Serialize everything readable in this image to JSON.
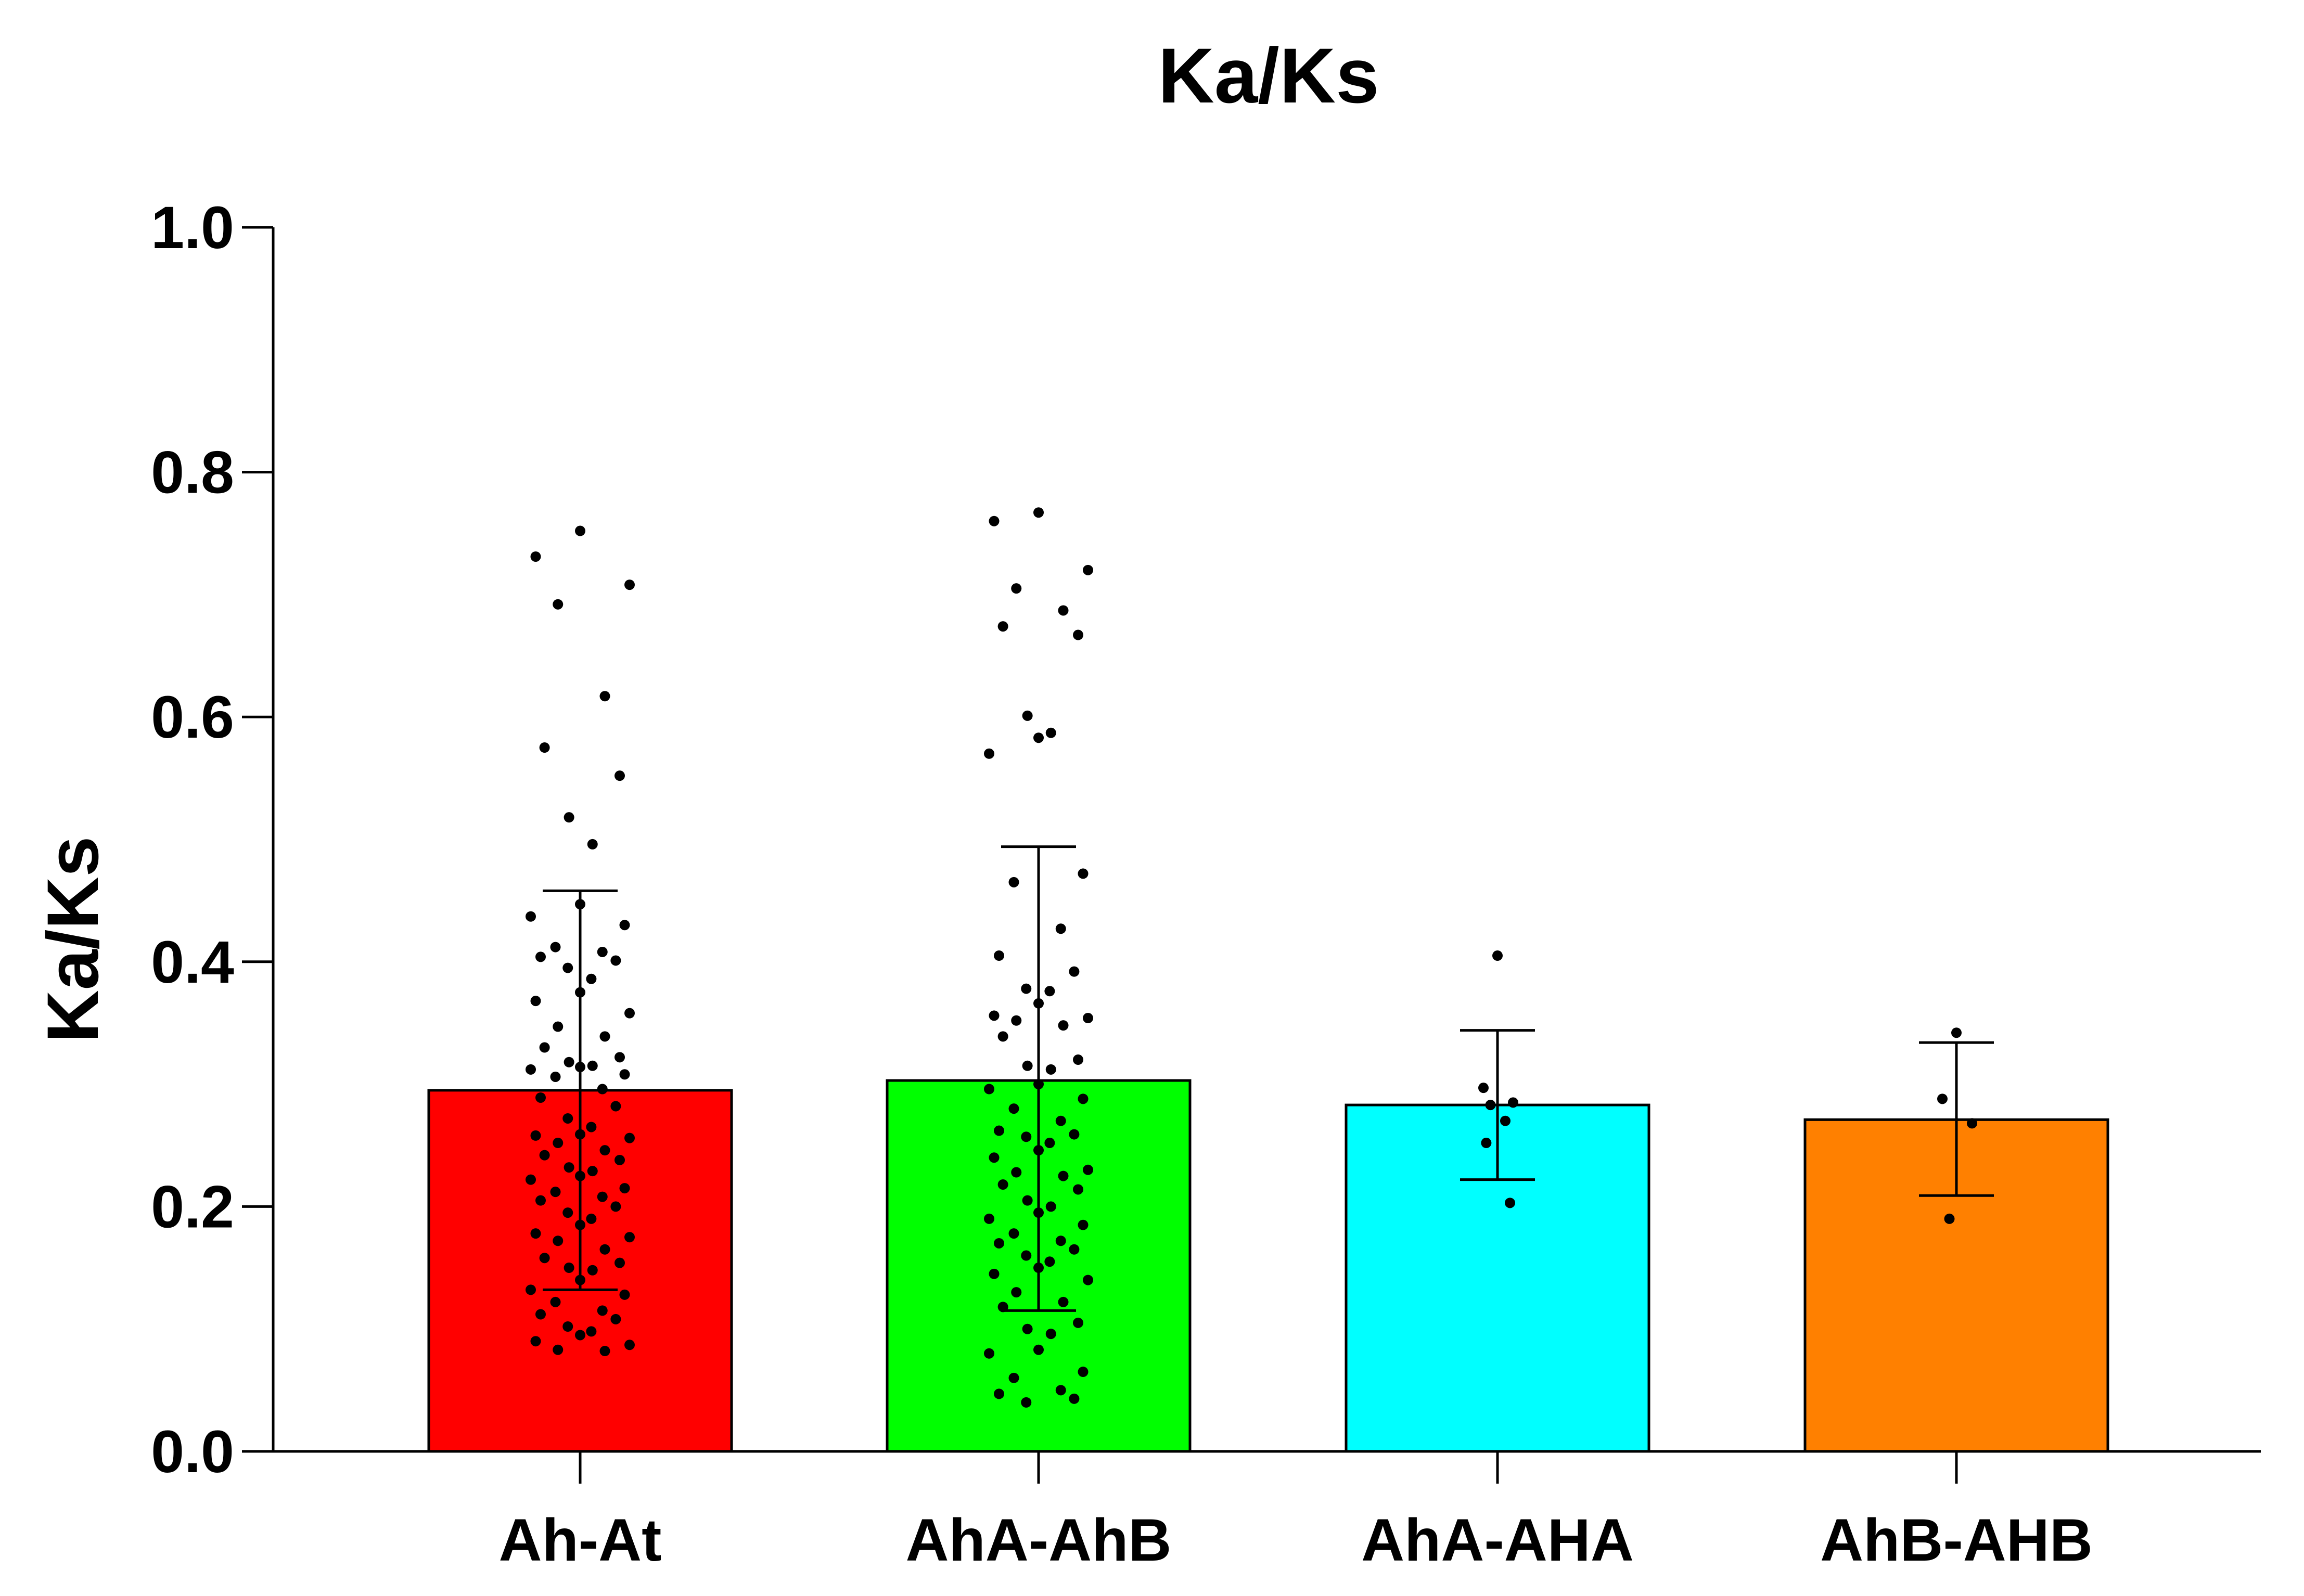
{
  "chart_data": {
    "type": "bar",
    "title": "Ka/Ks",
    "xlabel": "",
    "ylabel": "Ka/Ks",
    "ylim": [
      0,
      1.0
    ],
    "yticks": [
      "0.0",
      "0.2",
      "0.4",
      "0.6",
      "0.8",
      "1.0"
    ],
    "categories": [
      "Ah-At",
      "AhA-AhB",
      "AhA-AHA",
      "AhB-AHB"
    ],
    "values": [
      0.295,
      0.303,
      0.283,
      0.271
    ],
    "error_bars": [
      {
        "low": 0.132,
        "high": 0.458
      },
      {
        "low": 0.115,
        "high": 0.494
      },
      {
        "low": 0.222,
        "high": 0.344
      },
      {
        "low": 0.209,
        "high": 0.334
      }
    ],
    "colors": [
      "#ff0000",
      "#00ff00",
      "#00ffff",
      "#ff8000"
    ],
    "points": [
      [
        0.752,
        0.731,
        0.708,
        0.692,
        0.617,
        0.575,
        0.552,
        0.518,
        0.496,
        0.447,
        0.437,
        0.43,
        0.412,
        0.408,
        0.404,
        0.401,
        0.395,
        0.386,
        0.375,
        0.368,
        0.358,
        0.347,
        0.339,
        0.33,
        0.322,
        0.318,
        0.315,
        0.314,
        0.312,
        0.308,
        0.306,
        0.296,
        0.289,
        0.282,
        0.272,
        0.265,
        0.259,
        0.258,
        0.256,
        0.252,
        0.246,
        0.242,
        0.238,
        0.232,
        0.229,
        0.225,
        0.222,
        0.215,
        0.212,
        0.208,
        0.205,
        0.2,
        0.195,
        0.19,
        0.185,
        0.178,
        0.175,
        0.172,
        0.165,
        0.158,
        0.154,
        0.15,
        0.148,
        0.14,
        0.132,
        0.128,
        0.122,
        0.115,
        0.112,
        0.108,
        0.102,
        0.098,
        0.095,
        0.09,
        0.087,
        0.083,
        0.082
      ],
      [
        0.767,
        0.76,
        0.72,
        0.705,
        0.687,
        0.674,
        0.667,
        0.601,
        0.587,
        0.583,
        0.57,
        0.472,
        0.465,
        0.427,
        0.405,
        0.392,
        0.378,
        0.376,
        0.366,
        0.356,
        0.354,
        0.352,
        0.348,
        0.339,
        0.32,
        0.315,
        0.312,
        0.3,
        0.296,
        0.288,
        0.28,
        0.27,
        0.262,
        0.259,
        0.257,
        0.252,
        0.246,
        0.24,
        0.23,
        0.228,
        0.225,
        0.218,
        0.214,
        0.205,
        0.2,
        0.195,
        0.19,
        0.185,
        0.178,
        0.172,
        0.17,
        0.165,
        0.16,
        0.155,
        0.15,
        0.145,
        0.14,
        0.13,
        0.122,
        0.118,
        0.105,
        0.1,
        0.096,
        0.083,
        0.08,
        0.065,
        0.06,
        0.05,
        0.047,
        0.043,
        0.04
      ],
      [
        0.405,
        0.297,
        0.285,
        0.283,
        0.27,
        0.252,
        0.203
      ],
      [
        0.342,
        0.288,
        0.268,
        0.19
      ]
    ]
  }
}
